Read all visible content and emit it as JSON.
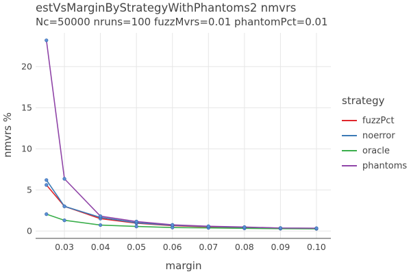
{
  "title": "estVsMarginByStrategyWithPhantoms2 nmvrs",
  "subtitle": "Nc=50000 nruns=100 fuzzMvrs=0.01 phantomPct=0.01",
  "legend": {
    "title": "strategy"
  },
  "chart_data": {
    "type": "line",
    "xlabel": "margin",
    "ylabel": "nmvrs %",
    "xlim": [
      0.022,
      0.104
    ],
    "ylim": [
      -0.9,
      24.1
    ],
    "x_ticks": [
      "0.03",
      "0.04",
      "0.05",
      "0.06",
      "0.07",
      "0.08",
      "0.09",
      "0.10"
    ],
    "y_ticks": [
      "0",
      "5",
      "10",
      "15",
      "20"
    ],
    "x": [
      0.025,
      0.03,
      0.04,
      0.05,
      0.06,
      0.07,
      0.08,
      0.09,
      0.1
    ],
    "grid": true,
    "legend_position": "right",
    "marker_color": "#5b8fd6",
    "series": [
      {
        "name": "fuzzPct",
        "color": "#e0262b",
        "values": [
          5.6,
          3.0,
          1.5,
          0.95,
          0.65,
          0.5,
          0.42,
          0.33,
          0.3
        ]
      },
      {
        "name": "noerror",
        "color": "#3a79b5",
        "values": [
          6.2,
          3.0,
          1.65,
          1.0,
          0.7,
          0.55,
          0.45,
          0.35,
          0.32
        ]
      },
      {
        "name": "oracle",
        "color": "#39ae4a",
        "values": [
          2.05,
          1.3,
          0.72,
          0.55,
          0.42,
          0.38,
          0.32,
          0.28,
          0.26
        ]
      },
      {
        "name": "phantoms",
        "color": "#8f44a7",
        "values": [
          23.2,
          6.35,
          1.8,
          1.15,
          0.75,
          0.58,
          0.48,
          0.36,
          0.34
        ]
      }
    ]
  }
}
